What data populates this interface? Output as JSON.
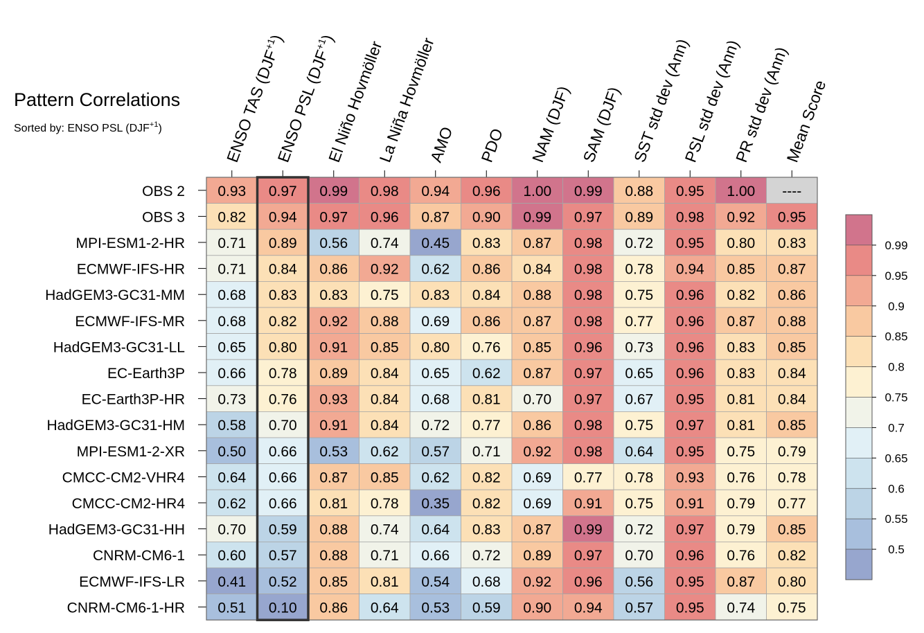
{
  "chart_data": {
    "type": "heatmap",
    "title": "Pattern Correlations",
    "subtitle": {
      "text": "Sorted by: ENSO PSL (DJF",
      "sup": "+1",
      "suffix": ")"
    },
    "columns": [
      {
        "label": "ENSO TAS (DJF",
        "sup": "+1",
        "suffix": ")"
      },
      {
        "label": "ENSO PSL (DJF",
        "sup": "+1",
        "suffix": ")"
      },
      {
        "label": "El Niño Hovmöller"
      },
      {
        "label": "La Niña Hovmöller"
      },
      {
        "label": "AMO"
      },
      {
        "label": "PDO"
      },
      {
        "label": "NAM (DJF)"
      },
      {
        "label": "SAM (DJF)"
      },
      {
        "label": "SST std dev (Ann)"
      },
      {
        "label": "PSL std dev (Ann)"
      },
      {
        "label": "PR std dev (Ann)"
      },
      {
        "label": "Mean Score"
      }
    ],
    "rows": [
      {
        "name": "OBS 2",
        "values": [
          "0.93",
          "0.97",
          "0.99",
          "0.98",
          "0.94",
          "0.96",
          "1.00",
          "0.99",
          "0.88",
          "0.95",
          "1.00",
          "----"
        ]
      },
      {
        "name": "OBS 3",
        "values": [
          "0.82",
          "0.94",
          "0.97",
          "0.96",
          "0.87",
          "0.90",
          "0.99",
          "0.97",
          "0.89",
          "0.98",
          "0.92",
          "0.95"
        ]
      },
      {
        "name": "MPI-ESM1-2-HR",
        "values": [
          "0.71",
          "0.89",
          "0.56",
          "0.74",
          "0.45",
          "0.83",
          "0.87",
          "0.98",
          "0.72",
          "0.95",
          "0.80",
          "0.83"
        ]
      },
      {
        "name": "ECMWF-IFS-HR",
        "values": [
          "0.71",
          "0.84",
          "0.86",
          "0.92",
          "0.62",
          "0.86",
          "0.84",
          "0.98",
          "0.78",
          "0.94",
          "0.85",
          "0.87"
        ]
      },
      {
        "name": "HadGEM3-GC31-MM",
        "values": [
          "0.68",
          "0.83",
          "0.83",
          "0.75",
          "0.83",
          "0.84",
          "0.88",
          "0.98",
          "0.75",
          "0.96",
          "0.82",
          "0.86"
        ]
      },
      {
        "name": "ECMWF-IFS-MR",
        "values": [
          "0.68",
          "0.82",
          "0.92",
          "0.88",
          "0.69",
          "0.86",
          "0.87",
          "0.98",
          "0.77",
          "0.96",
          "0.87",
          "0.88"
        ]
      },
      {
        "name": "HadGEM3-GC31-LL",
        "values": [
          "0.65",
          "0.80",
          "0.91",
          "0.85",
          "0.80",
          "0.76",
          "0.85",
          "0.96",
          "0.73",
          "0.96",
          "0.83",
          "0.85"
        ]
      },
      {
        "name": "EC-Earth3P",
        "values": [
          "0.66",
          "0.78",
          "0.89",
          "0.84",
          "0.65",
          "0.62",
          "0.87",
          "0.97",
          "0.65",
          "0.96",
          "0.83",
          "0.84"
        ]
      },
      {
        "name": "EC-Earth3P-HR",
        "values": [
          "0.73",
          "0.76",
          "0.93",
          "0.84",
          "0.68",
          "0.81",
          "0.70",
          "0.97",
          "0.67",
          "0.95",
          "0.81",
          "0.84"
        ]
      },
      {
        "name": "HadGEM3-GC31-HM",
        "values": [
          "0.58",
          "0.70",
          "0.91",
          "0.84",
          "0.72",
          "0.77",
          "0.86",
          "0.98",
          "0.75",
          "0.97",
          "0.81",
          "0.85"
        ]
      },
      {
        "name": "MPI-ESM1-2-XR",
        "values": [
          "0.50",
          "0.66",
          "0.53",
          "0.62",
          "0.57",
          "0.71",
          "0.92",
          "0.98",
          "0.64",
          "0.95",
          "0.75",
          "0.79"
        ]
      },
      {
        "name": "CMCC-CM2-VHR4",
        "values": [
          "0.64",
          "0.66",
          "0.87",
          "0.85",
          "0.62",
          "0.82",
          "0.69",
          "0.77",
          "0.78",
          "0.93",
          "0.76",
          "0.78"
        ]
      },
      {
        "name": "CMCC-CM2-HR4",
        "values": [
          "0.62",
          "0.66",
          "0.81",
          "0.78",
          "0.35",
          "0.82",
          "0.69",
          "0.91",
          "0.75",
          "0.91",
          "0.79",
          "0.77"
        ]
      },
      {
        "name": "HadGEM3-GC31-HH",
        "values": [
          "0.70",
          "0.59",
          "0.88",
          "0.74",
          "0.64",
          "0.83",
          "0.87",
          "0.99",
          "0.72",
          "0.97",
          "0.79",
          "0.85"
        ]
      },
      {
        "name": "CNRM-CM6-1",
        "values": [
          "0.60",
          "0.57",
          "0.88",
          "0.71",
          "0.66",
          "0.72",
          "0.89",
          "0.97",
          "0.70",
          "0.96",
          "0.76",
          "0.82"
        ]
      },
      {
        "name": "ECMWF-IFS-LR",
        "values": [
          "0.41",
          "0.52",
          "0.85",
          "0.81",
          "0.54",
          "0.68",
          "0.92",
          "0.96",
          "0.56",
          "0.95",
          "0.87",
          "0.80"
        ]
      },
      {
        "name": "CNRM-CM6-1-HR",
        "values": [
          "0.51",
          "0.10",
          "0.86",
          "0.64",
          "0.53",
          "0.59",
          "0.90",
          "0.94",
          "0.57",
          "0.95",
          "0.74",
          "0.75"
        ]
      }
    ],
    "highlighted_column_index": 1,
    "colorbar": {
      "levels": [
        0.5,
        0.55,
        0.6,
        0.65,
        0.7,
        0.75,
        0.8,
        0.85,
        0.9,
        0.95,
        0.99
      ],
      "tick_labels": [
        "0.5",
        "0.55",
        "0.6",
        "0.65",
        "0.7",
        "0.75",
        "0.8",
        "0.85",
        "0.9",
        "0.95",
        "0.99"
      ],
      "colors": [
        "#97a6ce",
        "#a8bfdd",
        "#bcd4e6",
        "#cde3ee",
        "#e1f0f6",
        "#f1f3e9",
        "#fdf1d2",
        "#fce0b6",
        "#f9c9a1",
        "#f2a993",
        "#e98a86",
        "#d1748c"
      ],
      "missing_color": "#d4d4d4"
    }
  }
}
